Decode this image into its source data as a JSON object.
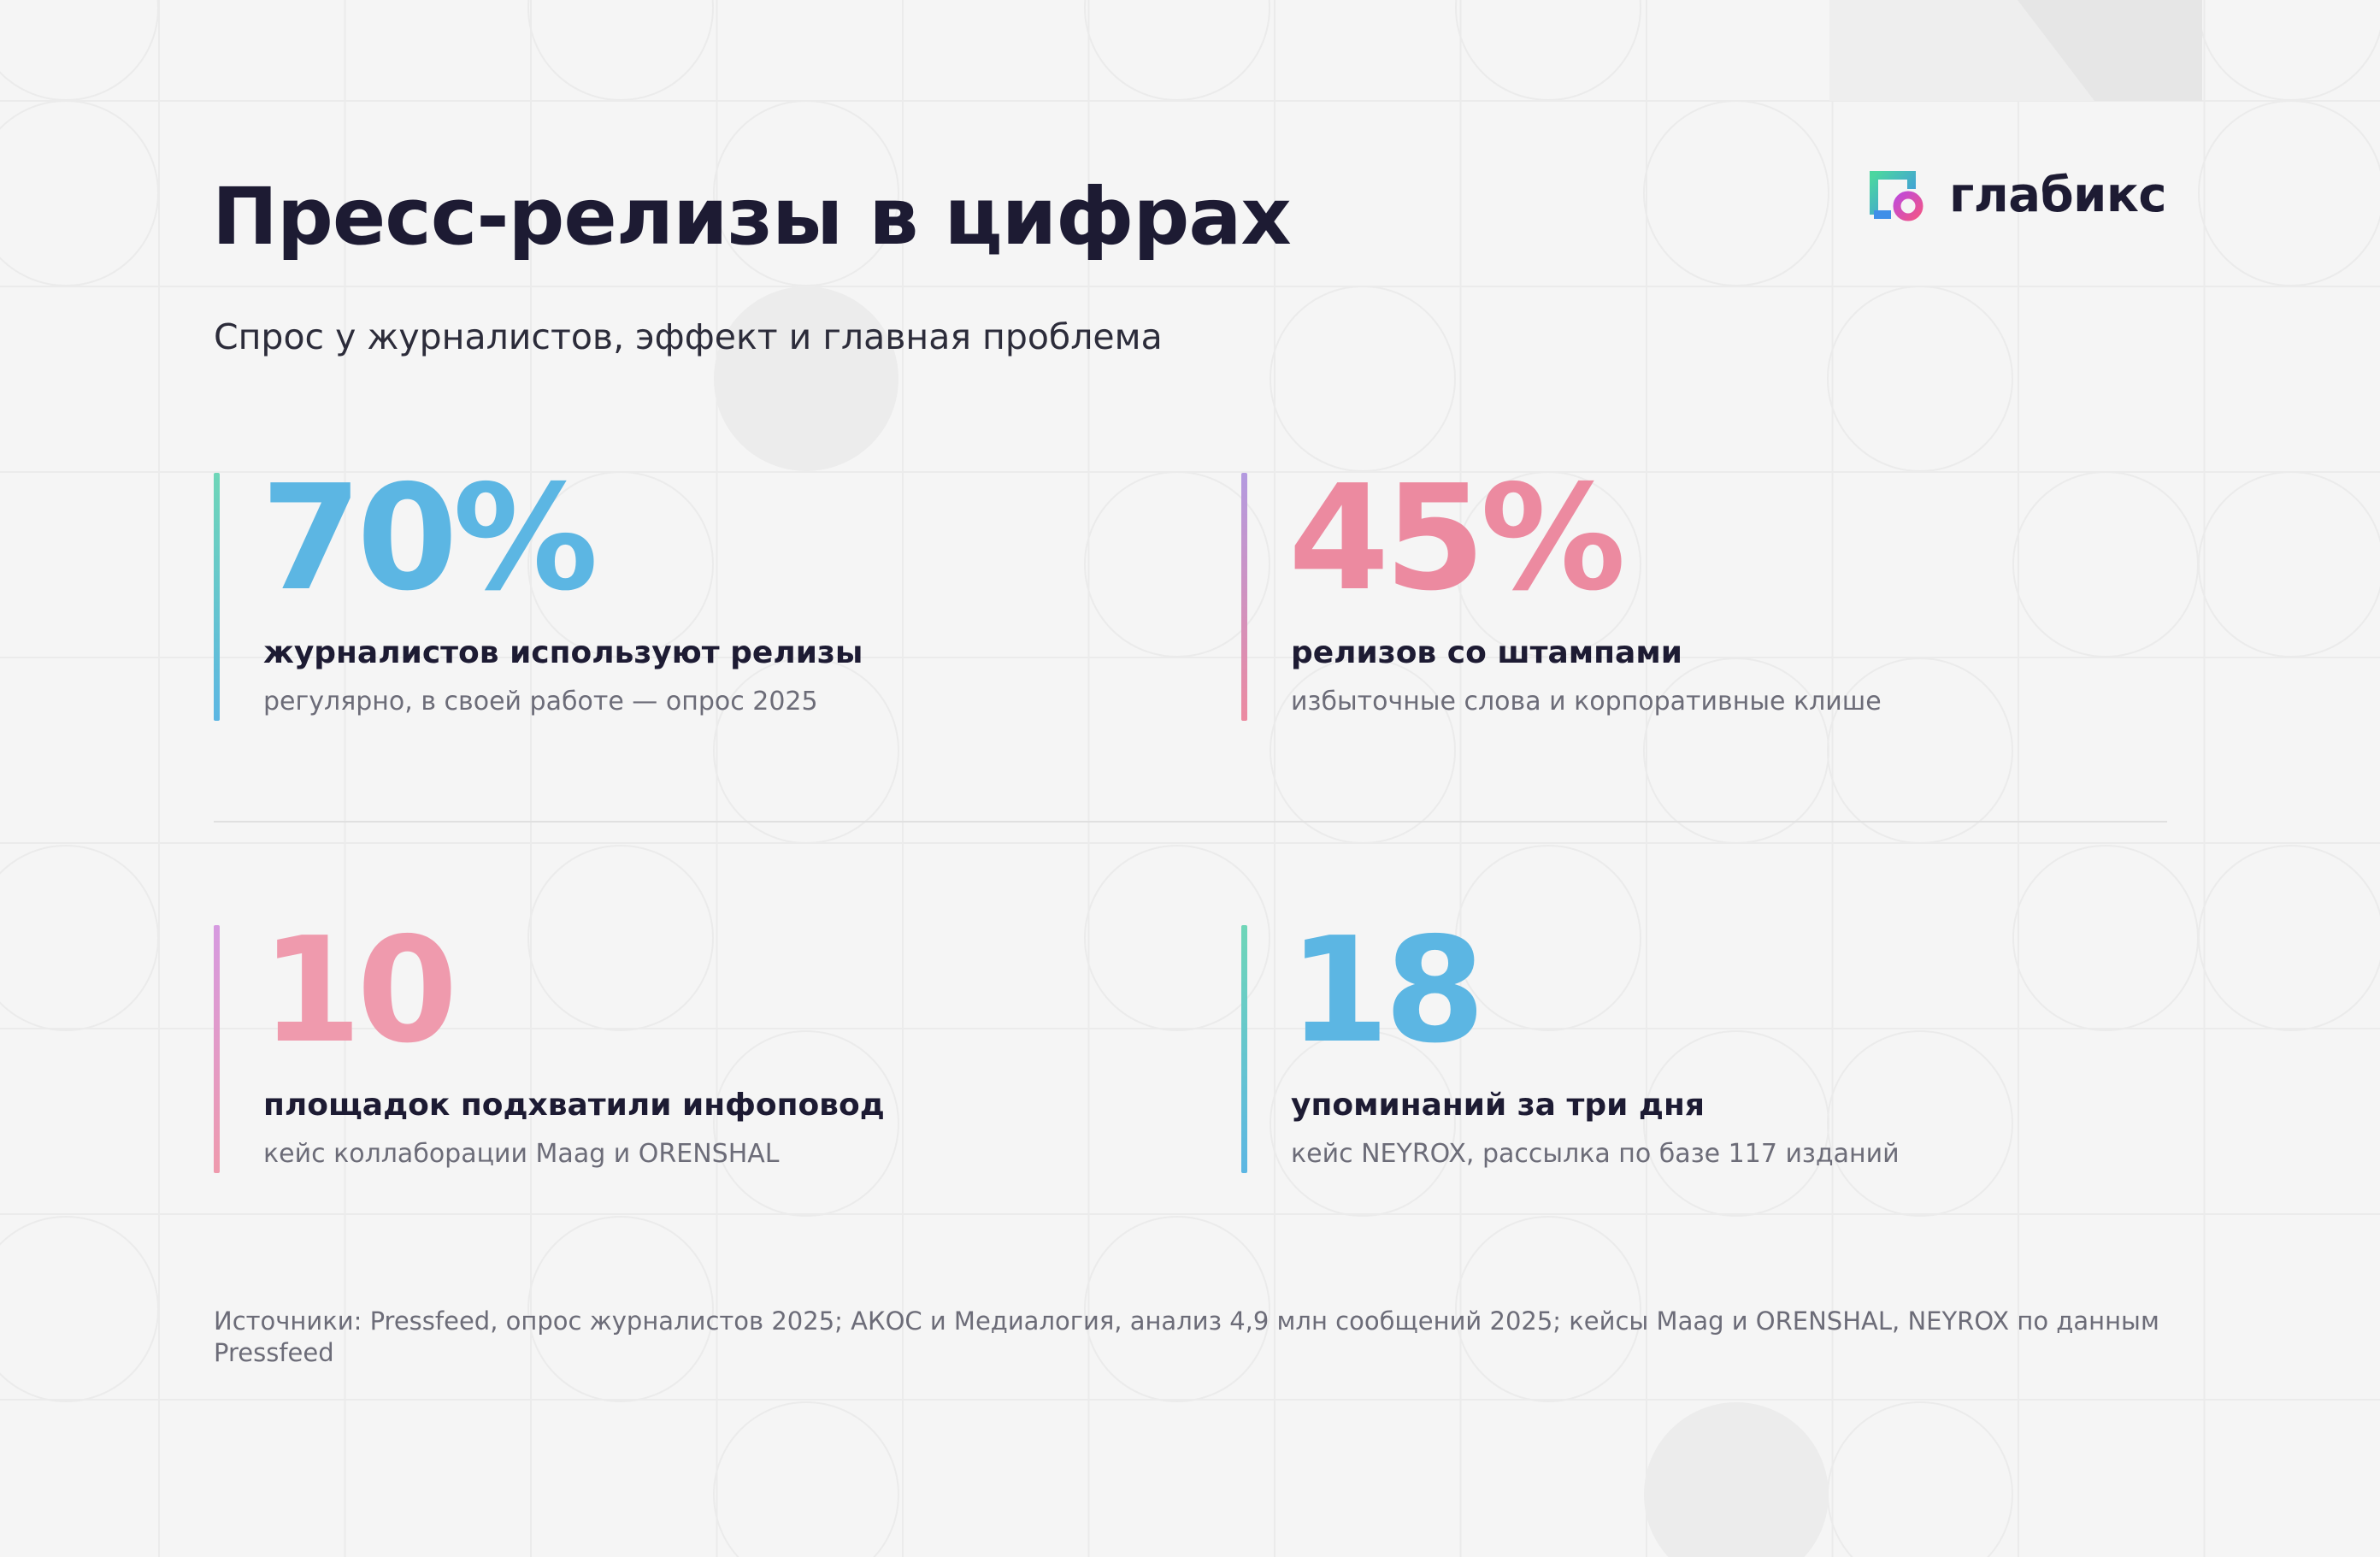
{
  "header": {
    "title": "Пресс-релизы в цифрах",
    "subtitle": "Спрос у журналистов, эффект и главная проблема"
  },
  "logo": {
    "name": "глабикс",
    "icon": "glabix-logo-icon"
  },
  "stats": [
    {
      "value": "70%",
      "label": "журналистов используют релизы",
      "note": "регулярно, в своей работе — опрос 2025",
      "color": "#5cb6e3",
      "bar_colors": [
        "#6fd6b8",
        "#5cb6e3"
      ]
    },
    {
      "value": "45%",
      "label": "релизов со штампами",
      "note": "избыточные слова и корпоративные клише",
      "color": "#ec8aa0",
      "bar_colors": [
        "#b39ae0",
        "#ec8aa0"
      ]
    },
    {
      "value": "10",
      "label": "площадок подхватили инфоповод",
      "note": "кейс коллаборации Maag и ORENSHAL",
      "color": "#ef9aad",
      "bar_colors": [
        "#d69ae0",
        "#ef9aad"
      ]
    },
    {
      "value": "18",
      "label": "упоминаний за три дня",
      "note": "кейс NEYROX, рассылка по базе 117 изданий",
      "color": "#5cb6e3",
      "bar_colors": [
        "#6fd6b8",
        "#5cb6e3"
      ]
    }
  ],
  "footer": {
    "sources": "Источники: Pressfeed, опрос журналистов 2025; АКОС и Медиалогия, анализ 4,9 млн сообщений 2025; кейсы Maag и ORENSHAL, NEYROX по данным Pressfeed"
  },
  "colors": {
    "background": "#f5f5f5",
    "text": "#1d1b33",
    "muted": "#6c6c78",
    "divider": "#e0e0e0"
  }
}
